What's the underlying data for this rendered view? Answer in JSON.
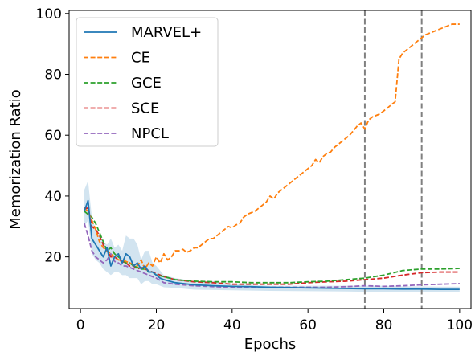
{
  "chart_data": {
    "type": "line",
    "xlabel": "Epochs",
    "ylabel": "Memorization Ratio",
    "xlim": [
      -3,
      103
    ],
    "ylim": [
      3,
      101
    ],
    "xticks": [
      0,
      20,
      40,
      60,
      80,
      100
    ],
    "yticks": [
      20,
      40,
      60,
      80,
      100
    ],
    "grid": false,
    "legend_position": "upper-left",
    "vlines": [
      {
        "x": 75,
        "color": "#808080",
        "style": "dashed"
      },
      {
        "x": 90,
        "color": "#808080",
        "style": "dashed"
      }
    ],
    "band": {
      "series": "MARVEL+",
      "color": "#1f77b4",
      "opacity": 0.2,
      "x": [
        1,
        2,
        3,
        4,
        5,
        6,
        7,
        8,
        9,
        10,
        11,
        12,
        13,
        14,
        15,
        16,
        17,
        18,
        19,
        20,
        22,
        25,
        30,
        35,
        40,
        50,
        60,
        70,
        75,
        80,
        85,
        90,
        95,
        100
      ],
      "upper": [
        42,
        45,
        33,
        29,
        27,
        25,
        24,
        26,
        23,
        24,
        22,
        27,
        26,
        26,
        24,
        19,
        22,
        22,
        18,
        17,
        14,
        13,
        12,
        12,
        11,
        10.5,
        10.5,
        10.5,
        10.5,
        10.5,
        10.3,
        10.3,
        10.2,
        10.2
      ],
      "lower": [
        30,
        32,
        21,
        19,
        18,
        16,
        15,
        14,
        15,
        15,
        14,
        14,
        13,
        13,
        13,
        11,
        12,
        12,
        11,
        11,
        10,
        9.8,
        9.2,
        9.1,
        9.0,
        8.8,
        8.7,
        8.6,
        8.5,
        8.5,
        8.4,
        8.4,
        8.3,
        8.3
      ]
    },
    "series": [
      {
        "name": "MARVEL+",
        "color": "#1f77b4",
        "style": "solid",
        "x": [
          1,
          2,
          3,
          4,
          5,
          6,
          7,
          8,
          9,
          10,
          11,
          12,
          13,
          14,
          15,
          16,
          17,
          18,
          19,
          20,
          21,
          22,
          25,
          30,
          35,
          40,
          45,
          50,
          55,
          60,
          65,
          70,
          75,
          80,
          85,
          90,
          95,
          100
        ],
        "values": [
          35,
          38.5,
          26,
          24,
          22,
          20,
          23,
          17,
          20,
          21,
          18,
          21,
          20,
          17,
          18,
          16,
          17,
          15,
          15,
          14,
          13,
          12.5,
          11.5,
          10.8,
          10.5,
          10.3,
          10.2,
          10.0,
          9.9,
          9.8,
          9.7,
          9.6,
          9.5,
          9.5,
          9.4,
          9.4,
          9.3,
          9.3
        ]
      },
      {
        "name": "CE",
        "color": "#ff7f0e",
        "style": "dashed",
        "x": [
          1,
          2,
          3,
          4,
          5,
          6,
          7,
          8,
          9,
          10,
          11,
          12,
          13,
          14,
          15,
          16,
          17,
          18,
          19,
          20,
          21,
          22,
          23,
          24,
          25,
          26,
          27,
          28,
          29,
          30,
          31,
          32,
          33,
          34,
          35,
          36,
          37,
          38,
          39,
          40,
          41,
          42,
          43,
          44,
          45,
          46,
          47,
          48,
          49,
          50,
          51,
          52,
          53,
          54,
          55,
          56,
          57,
          58,
          59,
          60,
          61,
          62,
          63,
          64,
          65,
          66,
          67,
          68,
          69,
          70,
          71,
          72,
          73,
          74,
          75,
          76,
          77,
          78,
          79,
          80,
          81,
          82,
          83,
          84,
          85,
          86,
          87,
          88,
          89,
          90,
          91,
          92,
          93,
          94,
          95,
          96,
          97,
          98,
          99,
          100
        ],
        "values": [
          36,
          35,
          32,
          29,
          25,
          23,
          22,
          21,
          20,
          19,
          19,
          18.5,
          18,
          17.5,
          17,
          19,
          16,
          18,
          17,
          20,
          18,
          21,
          19,
          20,
          22,
          22,
          22.5,
          21.5,
          22,
          23,
          23,
          24,
          25,
          26,
          26,
          27,
          28,
          29,
          30,
          29.5,
          30.5,
          31,
          33,
          34,
          34.5,
          35,
          36,
          37,
          38,
          40,
          39,
          41,
          42,
          43,
          44,
          45,
          46,
          47,
          48,
          49,
          50,
          52,
          51,
          53,
          54,
          54.5,
          56,
          57,
          58,
          59,
          60,
          61.5,
          63,
          64,
          62,
          65,
          66,
          66.5,
          67,
          68,
          69,
          70,
          71,
          85,
          87,
          88,
          89,
          90,
          91,
          92,
          93,
          93.5,
          94,
          94.5,
          95,
          95.5,
          96,
          96.5,
          96.5,
          96.5
        ]
      },
      {
        "name": "GCE",
        "color": "#2ca02c",
        "style": "dashed",
        "x": [
          1,
          2,
          3,
          4,
          5,
          6,
          7,
          8,
          9,
          10,
          11,
          12,
          13,
          14,
          15,
          16,
          17,
          18,
          19,
          20,
          22,
          25,
          30,
          35,
          40,
          45,
          50,
          55,
          60,
          65,
          70,
          75,
          80,
          85,
          90,
          95,
          100
        ],
        "values": [
          35,
          34,
          33,
          31,
          28,
          25,
          22,
          23,
          21,
          20,
          19,
          18,
          18,
          17,
          16.5,
          16,
          16,
          15,
          15,
          14,
          13.5,
          12.5,
          12,
          11.8,
          11.8,
          11.5,
          11.5,
          11.5,
          11.8,
          12,
          12.5,
          13,
          14,
          15.5,
          16,
          16,
          16.2
        ]
      },
      {
        "name": "SCE",
        "color": "#d62728",
        "style": "dashed",
        "x": [
          1,
          2,
          3,
          4,
          5,
          6,
          7,
          8,
          9,
          10,
          11,
          12,
          13,
          14,
          15,
          16,
          17,
          18,
          19,
          20,
          22,
          25,
          30,
          35,
          40,
          45,
          50,
          55,
          60,
          65,
          70,
          75,
          80,
          85,
          90,
          95,
          100
        ],
        "values": [
          36,
          36,
          30,
          29,
          27,
          24,
          22,
          20,
          20,
          19,
          18.5,
          18,
          17,
          17,
          16,
          16.5,
          16,
          15.5,
          15,
          14.5,
          13.5,
          12.5,
          11.8,
          11.5,
          11,
          11,
          11,
          11,
          11.5,
          11.8,
          12,
          12.5,
          13,
          14,
          14.8,
          15,
          15
        ]
      },
      {
        "name": "NPCL",
        "color": "#9467bd",
        "style": "dashed",
        "x": [
          1,
          2,
          3,
          4,
          5,
          6,
          7,
          8,
          9,
          10,
          11,
          12,
          13,
          14,
          15,
          16,
          17,
          18,
          19,
          20,
          22,
          25,
          30,
          35,
          40,
          45,
          50,
          55,
          60,
          65,
          70,
          75,
          80,
          85,
          90,
          95,
          100
        ],
        "values": [
          31,
          27,
          22,
          20,
          19,
          18,
          19,
          21,
          18.5,
          18,
          17,
          17,
          16.5,
          16,
          15.5,
          15,
          14.5,
          14,
          13.5,
          13,
          11.5,
          11,
          10.5,
          10.2,
          10,
          10,
          10,
          10,
          10,
          10,
          10.2,
          10.5,
          10.3,
          10.5,
          10.8,
          11,
          11.2
        ]
      }
    ]
  }
}
